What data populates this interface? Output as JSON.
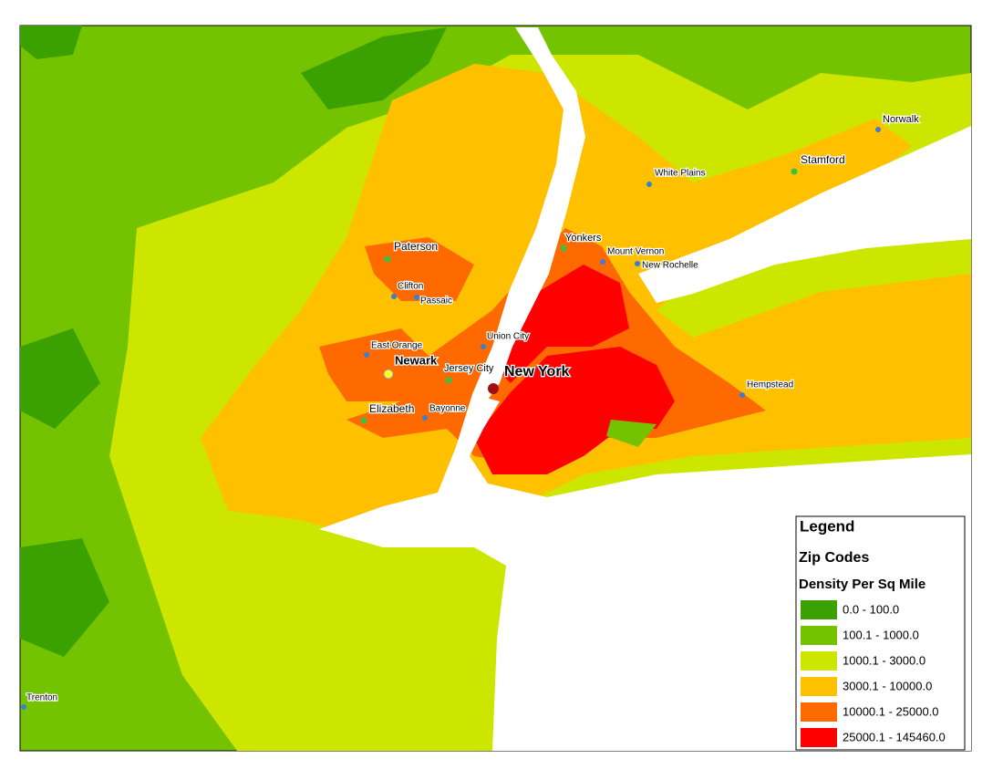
{
  "map": {
    "cities": [
      "Norwalk",
      "Stamford",
      "White Plains",
      "Yonkers",
      "Mount Vernon",
      "New Rochelle",
      "Paterson",
      "Clifton",
      "Passaic",
      "Union City",
      "East Orange",
      "Newark",
      "Jersey City",
      "New York",
      "Elizabeth",
      "Bayonne",
      "Hempstead",
      "Trenton"
    ],
    "legend": {
      "title": "Legend",
      "layer": "Zip Codes",
      "field": "Density Per Sq Mile",
      "items": [
        {
          "label": "0.0 - 100.0",
          "color": "#3aa100"
        },
        {
          "label": "100.1 - 1000.0",
          "color": "#74c300"
        },
        {
          "label": "1000.1 - 3000.0",
          "color": "#cde600"
        },
        {
          "label": "3000.1 - 10000.0",
          "color": "#ffc000"
        },
        {
          "label": "10000.1 - 25000.0",
          "color": "#ff6a00"
        },
        {
          "label": "25000.1 - 145460.0",
          "color": "#ff0000"
        }
      ]
    }
  }
}
